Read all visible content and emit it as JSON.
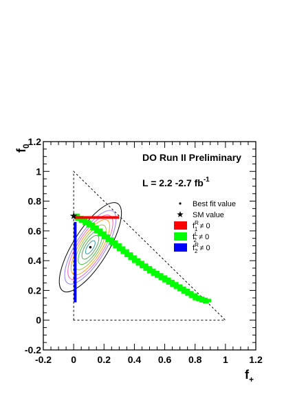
{
  "chart_data": {
    "type": "scatter",
    "title": "",
    "xlabel": {
      "main": "f",
      "sub": "+"
    },
    "ylabel": {
      "main": "f",
      "sub": "0"
    },
    "xlim": [
      -0.2,
      1.2
    ],
    "ylim": [
      -0.2,
      1.2
    ],
    "x_ticks": [
      "-0.2",
      "0",
      "0.2",
      "0.4",
      "0.6",
      "0.8",
      "1",
      "1.2"
    ],
    "y_ticks": [
      "-0.2",
      "0",
      "0.2",
      "0.4",
      "0.6",
      "0.8",
      "1",
      "1.2"
    ],
    "grid": false,
    "annotations": {
      "experiment": "DO Run II Preliminary",
      "luminosity_prefix": "L = 2.2 -2.7 fb",
      "luminosity_sup": "-1"
    },
    "legend": {
      "placement": "right",
      "entries": [
        {
          "label": "Best fit value",
          "marker": "dot",
          "color": "#000000"
        },
        {
          "label": "SM value",
          "marker": "star",
          "color": "#000000"
        },
        {
          "label_main": "f",
          "label_sub": "1",
          "label_sup": "R",
          "label_rest": " ≠ 0",
          "marker": "box",
          "color": "#ff0000"
        },
        {
          "label_main": "f",
          "label_sub": "2",
          "label_sup": "L",
          "label_rest": " ≠ 0",
          "marker": "box",
          "color": "#00ff00"
        },
        {
          "label_main": "f",
          "label_sub": "2",
          "label_sup": "R",
          "label_rest": " ≠ 0",
          "marker": "box",
          "color": "#0000ff"
        }
      ]
    },
    "physical_region_triangle": [
      [
        0,
        0
      ],
      [
        0,
        1
      ],
      [
        1,
        0
      ]
    ],
    "best_fit": {
      "x": 0.11,
      "y": 0.49
    },
    "sm_value": {
      "x": 0.0,
      "y": 0.7
    },
    "f1R_curve": {
      "color": "#ff0000",
      "x_range": [
        0.0,
        0.3
      ],
      "y": 0.69
    },
    "f2R_curve": {
      "color": "#0000ff",
      "x": 0.01,
      "y_range": [
        0.12,
        0.66
      ]
    },
    "f2L_curve": {
      "color": "#00ff00",
      "points": [
        [
          0.0,
          0.7
        ],
        [
          0.1,
          0.64
        ],
        [
          0.2,
          0.56
        ],
        [
          0.3,
          0.48
        ],
        [
          0.4,
          0.4
        ],
        [
          0.5,
          0.33
        ],
        [
          0.6,
          0.27
        ],
        [
          0.7,
          0.21
        ],
        [
          0.8,
          0.15
        ],
        [
          0.89,
          0.12
        ]
      ]
    },
    "contours": {
      "center": [
        0.11,
        0.49
      ],
      "angle_deg": -58,
      "ellipses": [
        {
          "a": 0.05,
          "b": 0.02,
          "color": "#2f9f9f"
        },
        {
          "a": 0.09,
          "b": 0.034,
          "color": "#5aa05a"
        },
        {
          "a": 0.13,
          "b": 0.048,
          "color": "#3fbf3f"
        },
        {
          "a": 0.17,
          "b": 0.06,
          "color": "#9fbf3f"
        },
        {
          "a": 0.21,
          "b": 0.072,
          "color": "#ff9f1f"
        },
        {
          "a": 0.245,
          "b": 0.084,
          "color": "#ff5fbf"
        },
        {
          "a": 0.28,
          "b": 0.096,
          "color": "#8f7fff"
        },
        {
          "a": 0.34,
          "b": 0.115,
          "color": "#000000"
        }
      ]
    }
  }
}
